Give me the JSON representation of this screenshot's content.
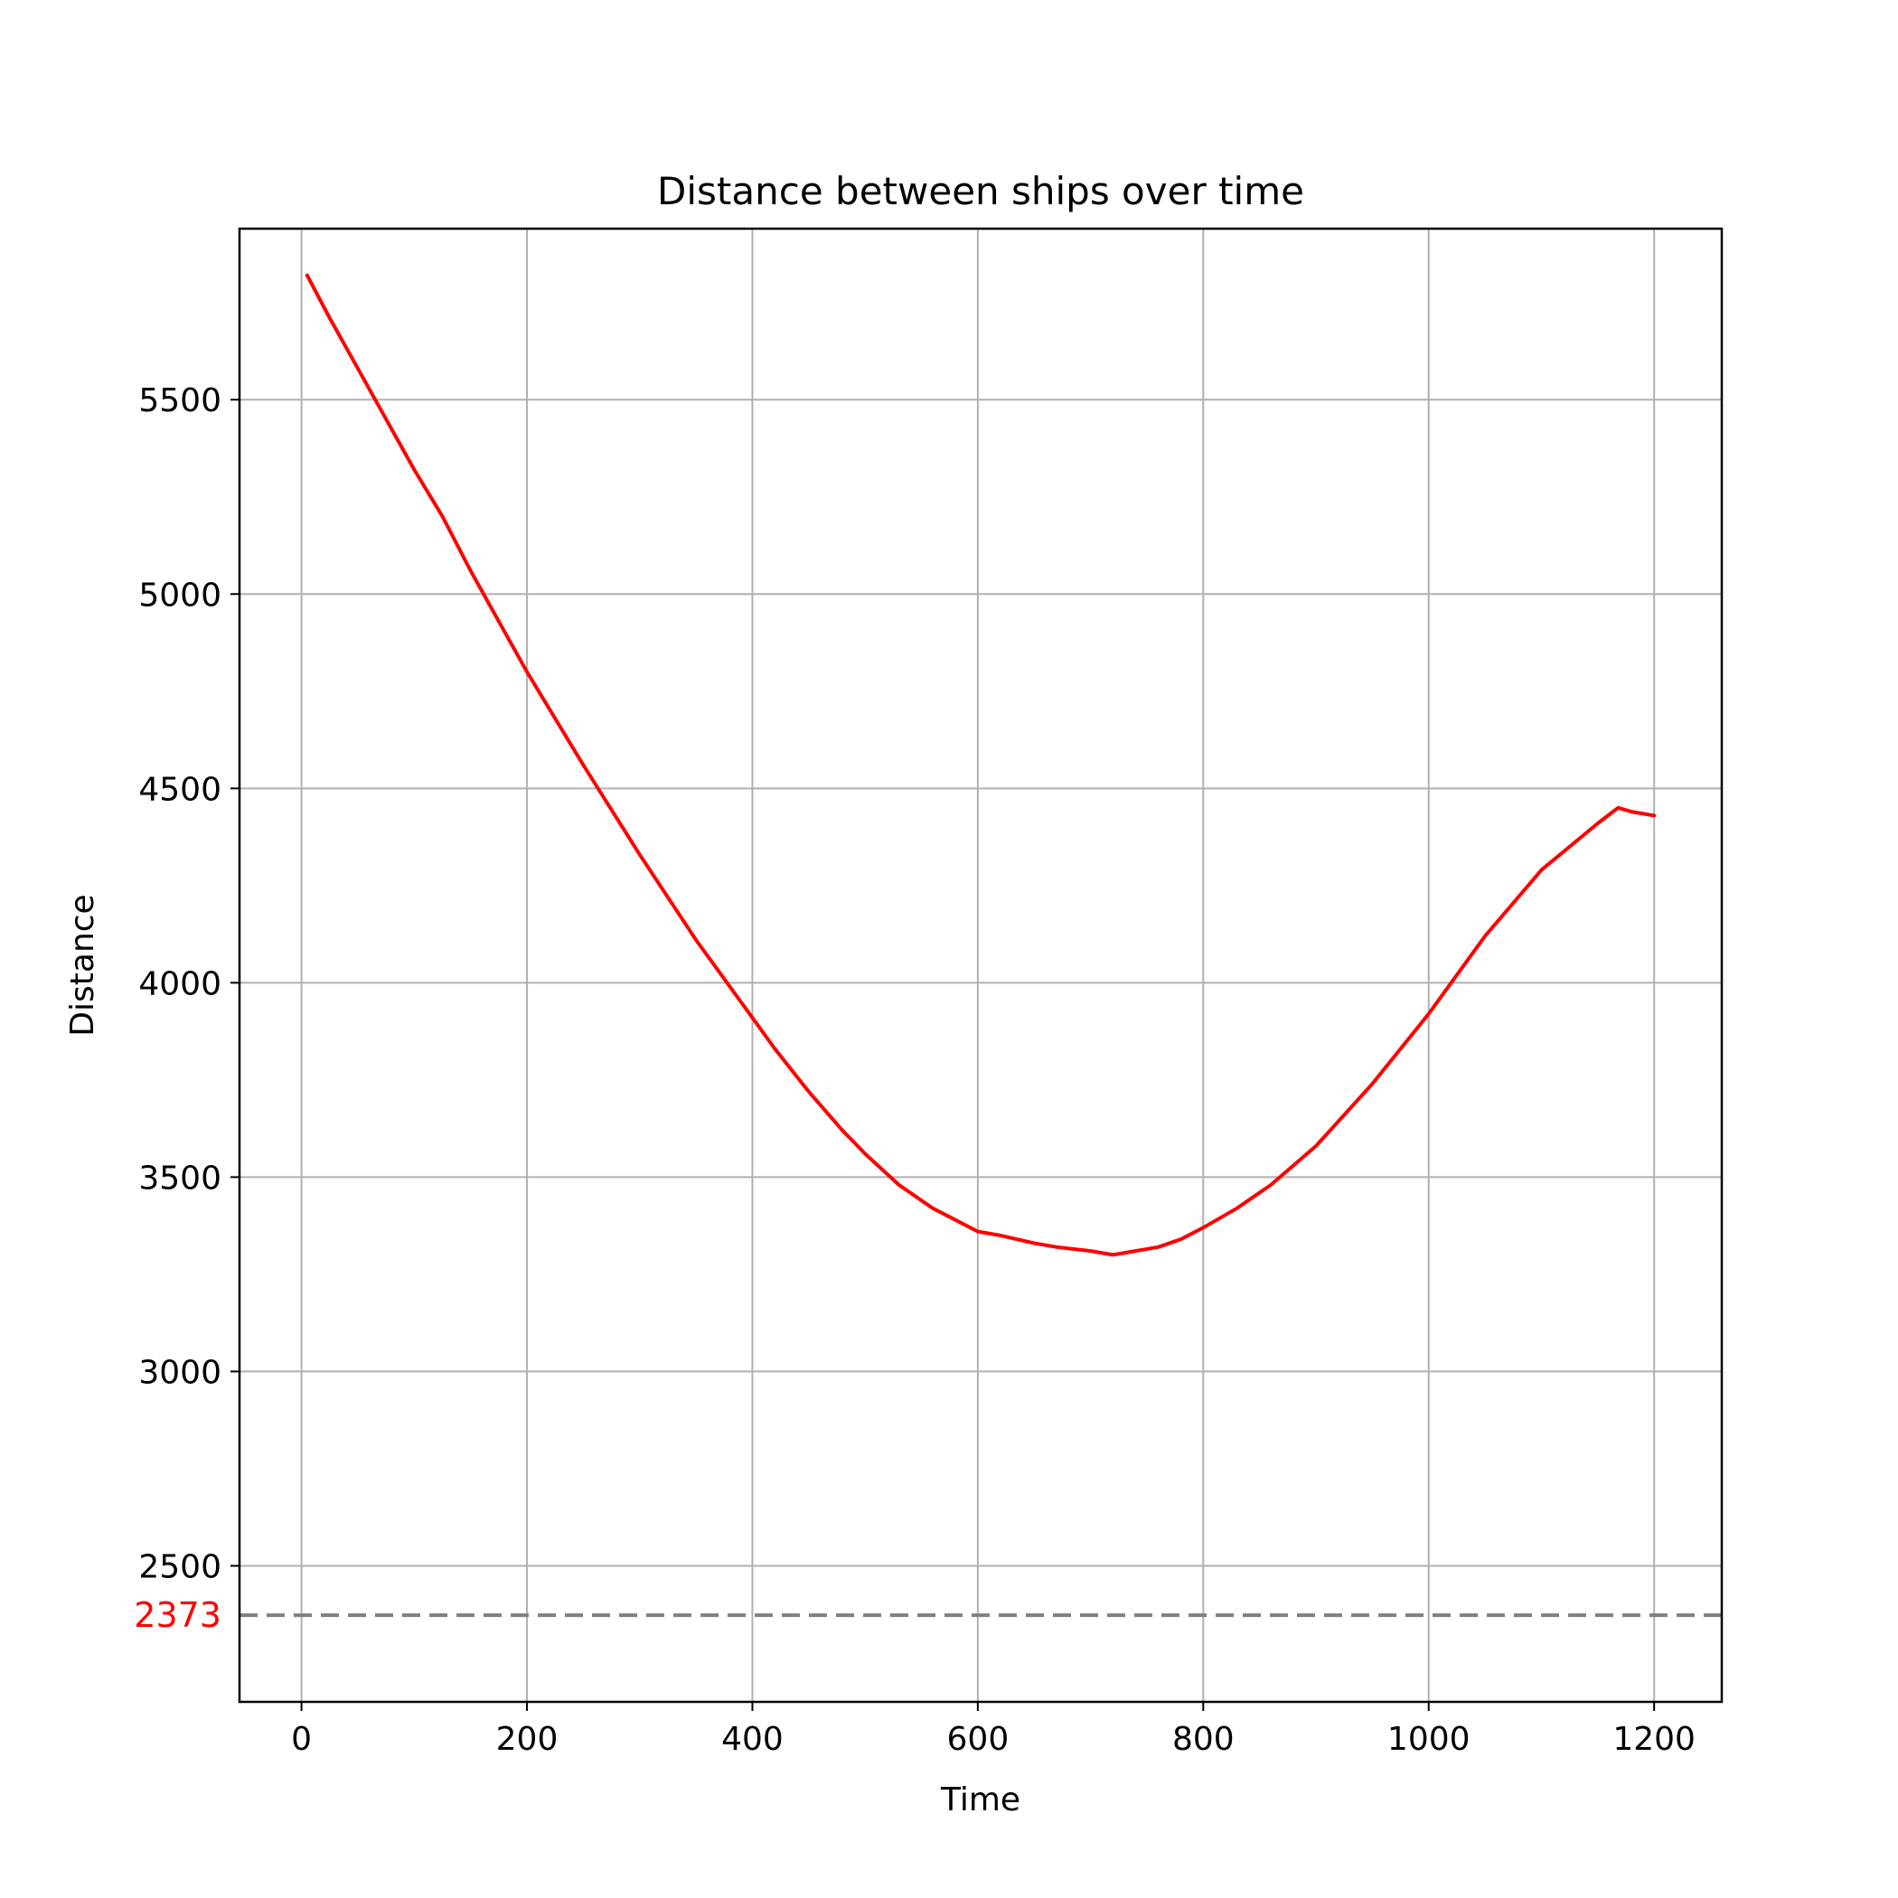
{
  "chart_data": {
    "type": "line",
    "title": "Distance between ships over time",
    "xlabel": "Time",
    "ylabel": "Distance",
    "xlim": [
      -55,
      1260
    ],
    "ylim": [
      2150,
      5940
    ],
    "xticks": [
      0,
      200,
      400,
      600,
      800,
      1000,
      1200
    ],
    "yticks": [
      2500,
      3000,
      3500,
      4000,
      4500,
      5000,
      5500
    ],
    "grid": true,
    "series": [
      {
        "color": "#ff0000",
        "x": [
          5,
          25,
          50,
          75,
          100,
          125,
          150,
          175,
          200,
          250,
          300,
          350,
          400,
          420,
          450,
          480,
          500,
          530,
          560,
          580,
          600,
          620,
          650,
          670,
          700,
          720,
          740,
          760,
          780,
          800,
          830,
          860,
          900,
          950,
          1000,
          1050,
          1100,
          1150,
          1168,
          1180,
          1200
        ],
        "y": [
          5820,
          5710,
          5580,
          5450,
          5320,
          5200,
          5060,
          4930,
          4800,
          4560,
          4330,
          4110,
          3910,
          3830,
          3720,
          3620,
          3560,
          3480,
          3420,
          3390,
          3360,
          3350,
          3330,
          3320,
          3310,
          3300,
          3310,
          3320,
          3340,
          3370,
          3420,
          3480,
          3580,
          3740,
          3920,
          4120,
          4290,
          4410,
          4450,
          4440,
          4430
        ]
      }
    ],
    "hline": {
      "y": 2373,
      "color": "#808080",
      "style": "dashed",
      "label": "2373",
      "label_color": "#ff0000"
    }
  }
}
